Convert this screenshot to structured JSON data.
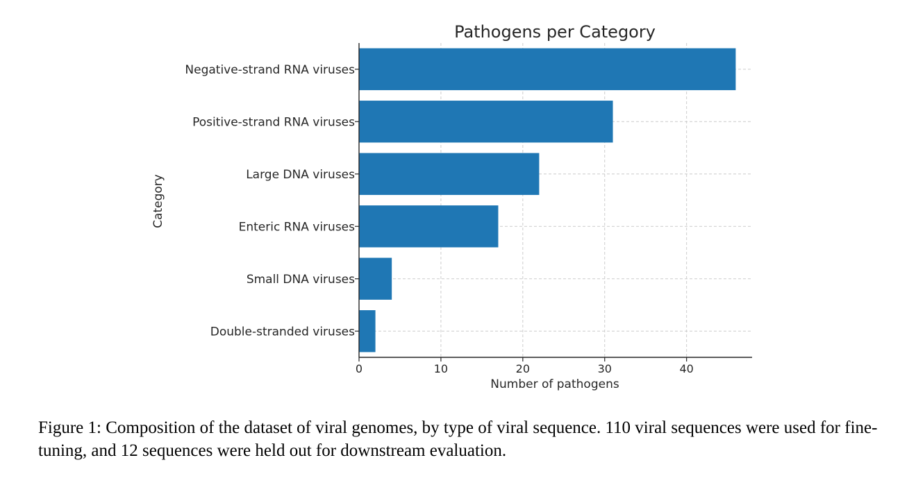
{
  "caption": "Figure 1: Composition of the dataset of viral genomes, by type of viral sequence. 110 viral sequences were used for fine-tuning, and 12 sequences were held out for downstream evaluation.",
  "chart_data": {
    "type": "bar",
    "orientation": "horizontal",
    "title": "Pathogens per Category",
    "xlabel": "Number of pathogens",
    "ylabel": "Category",
    "categories": [
      "Negative-strand RNA viruses",
      "Positive-strand RNA viruses",
      "Large DNA viruses",
      "Enteric RNA viruses",
      "Small DNA viruses",
      "Double-stranded viruses"
    ],
    "values": [
      46,
      31,
      22,
      17,
      4,
      2
    ],
    "xlim": [
      0,
      48
    ],
    "xticks": [
      0,
      10,
      20,
      30,
      40
    ],
    "grid": true,
    "bar_color": "#1f77b4",
    "grid_color": "#cccccc",
    "axis_color": "#262626"
  }
}
